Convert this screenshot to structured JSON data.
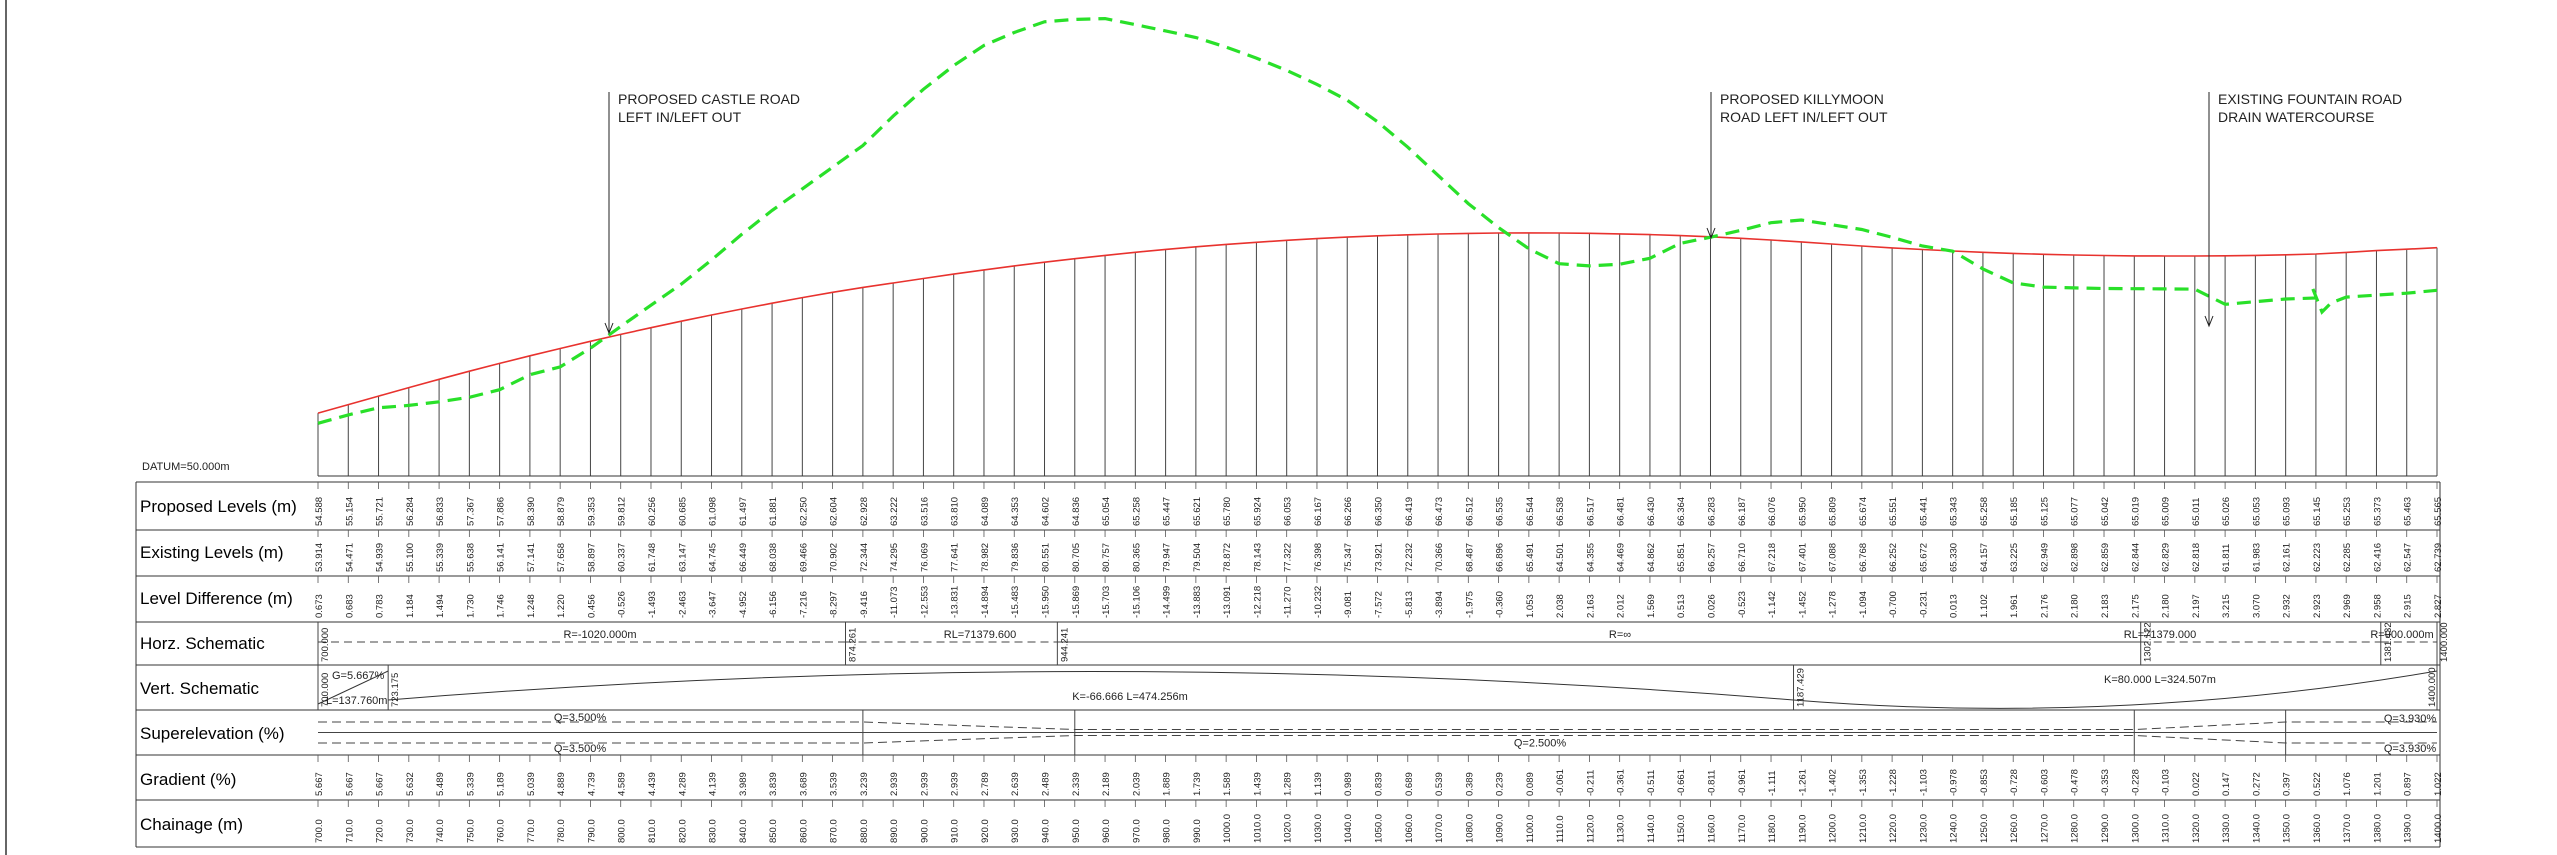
{
  "colors": {
    "proposed": "#e8322e",
    "existing": "#29e029",
    "ink": "#222222",
    "grid": "#555555"
  },
  "datum_label": "DATUM=50.000m",
  "annotations": [
    {
      "lines": [
        "PROPOSED CASTLE ROAD",
        "LEFT IN/LEFT OUT"
      ]
    },
    {
      "lines": [
        "PROPOSED KILLYMOON",
        "ROAD LEFT IN/LEFT OUT"
      ]
    },
    {
      "lines": [
        "EXISTING FOUNTAIN ROAD",
        "DRAIN WATERCOURSE"
      ]
    }
  ],
  "band_labels": {
    "proposed": "Proposed Levels (m)",
    "existing": "Existing Levels (m)",
    "difference": "Level Difference (m)",
    "horz": "Horz. Schematic",
    "vert": "Vert. Schematic",
    "super": "Superelevation (%)",
    "gradient": "Gradient (%)",
    "chainage": "Chainage (m)"
  },
  "horz_schematic": {
    "segments": [
      {
        "label": "R=-1020.000m"
      },
      {
        "label": "RL=71379.600"
      },
      {
        "label": "R=∞"
      },
      {
        "label": "RL=71379.000"
      },
      {
        "label": "R=900.000m"
      }
    ],
    "chainage_marks": [
      "700.000",
      "874.261",
      "944.241",
      "1302.122",
      "1381.432",
      "1400.000"
    ]
  },
  "vert_schematic": {
    "start_grade": "G=5.667%",
    "start_length": "L=137.760m",
    "start_chainage": "700.000",
    "end_tangent_chainage": "723.175",
    "curve1": "K=-66.666 L=474.256m",
    "curve2": "K=80.000 L=324.507m",
    "mid_chainage": "1187.429",
    "end_chainage": "1400.000"
  },
  "superelevation": {
    "top_left": "Q=3.500%",
    "bottom_left": "Q=3.500%",
    "middle": "Q=2.500%",
    "top_right": "Q=3.930%",
    "bottom_right": "Q=3.930%"
  },
  "chart_data": {
    "type": "line",
    "x_range": [
      700,
      1400
    ],
    "datum": 50.0,
    "chainage": [
      700.0,
      710.0,
      720.0,
      730.0,
      740.0,
      750.0,
      760.0,
      770.0,
      780.0,
      790.0,
      800.0,
      810.0,
      820.0,
      830.0,
      840.0,
      850.0,
      860.0,
      870.0,
      880.0,
      890.0,
      900.0,
      910.0,
      920.0,
      930.0,
      940.0,
      950.0,
      960.0,
      970.0,
      980.0,
      990.0,
      1000.0,
      1010.0,
      1020.0,
      1030.0,
      1040.0,
      1050.0,
      1060.0,
      1070.0,
      1080.0,
      1090.0,
      1100.0,
      1110.0,
      1120.0,
      1130.0,
      1140.0,
      1150.0,
      1160.0,
      1170.0,
      1180.0,
      1190.0,
      1200.0,
      1210.0,
      1220.0,
      1230.0,
      1240.0,
      1250.0,
      1260.0,
      1270.0,
      1280.0,
      1290.0,
      1300.0,
      1310.0,
      1320.0,
      1330.0,
      1340.0,
      1350.0,
      1360.0,
      1370.0,
      1380.0,
      1390.0,
      1400.0
    ],
    "chainage_labels": [
      "700.0",
      "710.0",
      "720.0",
      "730.0",
      "740.0",
      "750.0",
      "760.0",
      "770.0",
      "780.0",
      "790.0",
      "800.0",
      "810.0",
      "820.0",
      "830.0",
      "840.0",
      "850.0",
      "860.0",
      "870.0",
      "880.0",
      "890.0",
      "900.0",
      "910.0",
      "920.0",
      "930.0",
      "940.0",
      "950.0",
      "960.0",
      "970.0",
      "980.0",
      "990.0",
      "1000.0",
      "1010.0",
      "1020.0",
      "1030.0",
      "1040.0",
      "1050.0",
      "1060.0",
      "1070.0",
      "1080.0",
      "1090.0",
      "1100.0",
      "1110.0",
      "1120.0",
      "1130.0",
      "1140.0",
      "1150.0",
      "1160.0",
      "1170.0",
      "1180.0",
      "1190.0",
      "1200.0",
      "1210.0",
      "1220.0",
      "1230.0",
      "1240.0",
      "1250.0",
      "1260.0",
      "1270.0",
      "1280.0",
      "1290.0",
      "1300.0",
      "1310.0",
      "1320.0",
      "1330.0",
      "1340.0",
      "1350.0",
      "1360.0",
      "1370.0",
      "1380.0",
      "1390.0",
      "1400.0"
    ],
    "proposed_levels": [
      "54.588",
      "55.154",
      "55.721",
      "56.284",
      "56.833",
      "57.367",
      "57.886",
      "58.390",
      "58.879",
      "59.353",
      "59.812",
      "60.256",
      "60.685",
      "61.098",
      "61.497",
      "61.881",
      "62.250",
      "62.604",
      "62.928",
      "63.222",
      "63.516",
      "63.810",
      "64.089",
      "64.353",
      "64.602",
      "64.836",
      "65.054",
      "65.258",
      "65.447",
      "65.621",
      "65.780",
      "65.924",
      "66.053",
      "66.167",
      "66.266",
      "66.350",
      "66.419",
      "66.473",
      "66.512",
      "66.535",
      "66.544",
      "66.538",
      "66.517",
      "66.481",
      "66.430",
      "66.364",
      "66.283",
      "66.187",
      "66.076",
      "65.950",
      "65.809",
      "65.674",
      "65.551",
      "65.441",
      "65.343",
      "65.258",
      "65.185",
      "65.125",
      "65.077",
      "65.042",
      "65.019",
      "65.009",
      "65.011",
      "65.026",
      "65.053",
      "65.093",
      "65.145",
      "65.253",
      "65.373",
      "65.463",
      "65.565"
    ],
    "existing_levels": [
      "53.914",
      "54.471",
      "54.939",
      "55.100",
      "55.339",
      "55.638",
      "56.141",
      "57.141",
      "57.658",
      "58.897",
      "60.337",
      "61.748",
      "63.147",
      "64.745",
      "66.449",
      "68.038",
      "69.466",
      "70.902",
      "72.344",
      "74.295",
      "76.069",
      "77.641",
      "78.982",
      "79.836",
      "80.551",
      "80.705",
      "80.757",
      "80.365",
      "79.947",
      "79.504",
      "78.872",
      "78.143",
      "77.322",
      "76.398",
      "75.347",
      "73.921",
      "72.232",
      "70.366",
      "68.487",
      "66.896",
      "65.491",
      "64.501",
      "64.355",
      "64.469",
      "64.862",
      "65.851",
      "66.257",
      "66.710",
      "67.218",
      "67.401",
      "67.088",
      "66.768",
      "66.252",
      "65.672",
      "65.330",
      "64.157",
      "63.225",
      "62.949",
      "62.898",
      "62.859",
      "62.844",
      "62.829",
      "62.818",
      "61.811",
      "61.983",
      "62.161",
      "62.223",
      "62.285",
      "62.416",
      "62.547",
      "62.739"
    ],
    "level_difference": [
      "0.673",
      "0.683",
      "0.783",
      "1.184",
      "1.494",
      "1.730",
      "1.746",
      "1.248",
      "1.220",
      "0.456",
      "-0.526",
      "-1.493",
      "-2.463",
      "-3.647",
      "-4.952",
      "-6.156",
      "-7.216",
      "-8.297",
      "-9.416",
      "-11.073",
      "-12.553",
      "-13.831",
      "-14.894",
      "-15.483",
      "-15.950",
      "-15.869",
      "-15.703",
      "-15.106",
      "-14.499",
      "-13.883",
      "-13.091",
      "-12.218",
      "-11.270",
      "-10.232",
      "-9.081",
      "-7.572",
      "-5.813",
      "-3.894",
      "-1.975",
      "-0.360",
      "1.053",
      "2.038",
      "2.163",
      "2.012",
      "1.569",
      "0.513",
      "0.026",
      "-0.523",
      "-1.142",
      "-1.452",
      "-1.278",
      "-1.094",
      "-0.700",
      "-0.231",
      "0.013",
      "1.102",
      "1.961",
      "2.176",
      "2.180",
      "2.183",
      "2.175",
      "2.180",
      "2.197",
      "3.215",
      "3.070",
      "2.932",
      "2.923",
      "2.969",
      "2.958",
      "2.915",
      "2.827"
    ],
    "gradient": [
      "5.667",
      "5.667",
      "5.667",
      "5.632",
      "5.489",
      "5.339",
      "5.189",
      "5.039",
      "4.889",
      "4.739",
      "4.589",
      "4.439",
      "4.289",
      "4.139",
      "3.989",
      "3.839",
      "3.689",
      "3.539",
      "3.239",
      "2.939",
      "2.939",
      "2.939",
      "2.789",
      "2.639",
      "2.489",
      "2.339",
      "2.189",
      "2.039",
      "1.889",
      "1.739",
      "1.589",
      "1.439",
      "1.289",
      "1.139",
      "0.989",
      "0.839",
      "0.689",
      "0.539",
      "0.389",
      "0.239",
      "0.089",
      "-0.061",
      "-0.211",
      "-0.361",
      "-0.511",
      "-0.661",
      "-0.811",
      "-0.961",
      "-1.111",
      "-1.261",
      "-1.402",
      "-1.353",
      "-1.228",
      "-1.103",
      "-0.978",
      "-0.853",
      "-0.728",
      "-0.603",
      "-0.478",
      "-0.353",
      "-0.228",
      "-0.103",
      "0.022",
      "0.147",
      "0.272",
      "0.397",
      "0.522",
      "1.076",
      "1.201",
      "0.897",
      "1.022"
    ],
    "existing_dip": {
      "chainage": 1362,
      "level": 61.3
    }
  }
}
